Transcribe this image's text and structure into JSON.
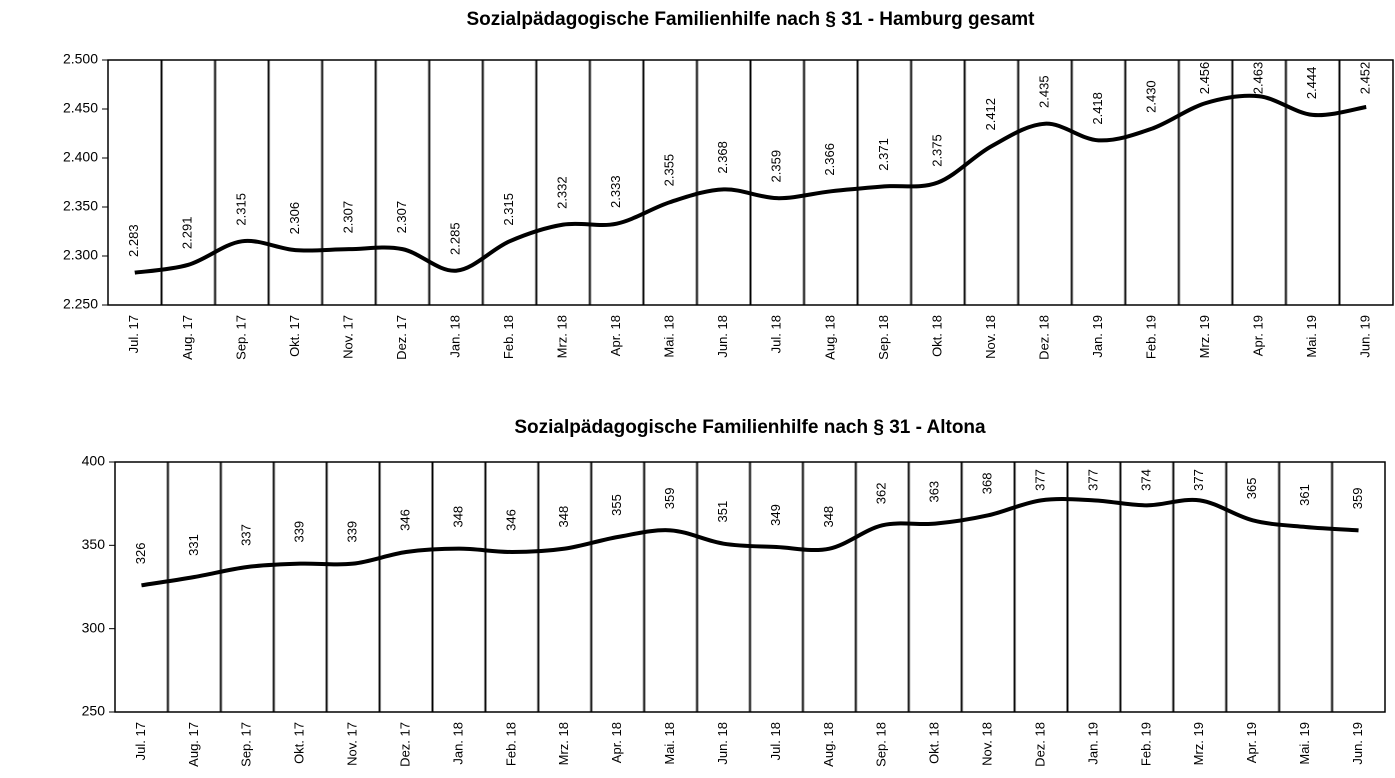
{
  "chart_data": [
    {
      "type": "line",
      "title": "Sozialpädagogische Familienhilfe nach § 31 - Hamburg gesamt",
      "categories": [
        "Jul. 17",
        "Aug. 17",
        "Sep. 17",
        "Okt. 17",
        "Nov. 17",
        "Dez. 17",
        "Jan. 18",
        "Feb. 18",
        "Mrz. 18",
        "Apr. 18",
        "Mai. 18",
        "Jun. 18",
        "Jul. 18",
        "Aug. 18",
        "Sep. 18",
        "Okt. 18",
        "Nov. 18",
        "Dez. 18",
        "Jan. 19",
        "Feb. 19",
        "Mrz. 19",
        "Apr. 19",
        "Mai. 19",
        "Jun. 19"
      ],
      "values": [
        2283,
        2291,
        2315,
        2306,
        2307,
        2307,
        2285,
        2315,
        2332,
        2333,
        2355,
        2368,
        2359,
        2366,
        2371,
        2375,
        2412,
        2435,
        2418,
        2430,
        2456,
        2463,
        2444,
        2452
      ],
      "value_labels": [
        "2.283",
        "2.291",
        "2.315",
        "2.306",
        "2.307",
        "2.307",
        "2.285",
        "2.315",
        "2.332",
        "2.333",
        "2.355",
        "2.368",
        "2.359",
        "2.366",
        "2.371",
        "2.375",
        "2.412",
        "2.435",
        "2.418",
        "2.430",
        "2.456",
        "2.463",
        "2.444",
        "2.452"
      ],
      "color": "#000000",
      "ylim": [
        2250,
        2500
      ],
      "yticks": [
        {
          "value": 2250,
          "label": "2.250"
        },
        {
          "value": 2300,
          "label": "2.300"
        },
        {
          "value": 2350,
          "label": "2.350"
        },
        {
          "value": 2400,
          "label": "2.400"
        },
        {
          "value": 2450,
          "label": "2.450"
        },
        {
          "value": 2500,
          "label": "2.500"
        }
      ]
    },
    {
      "type": "line",
      "title": "Sozialpädagogische Familienhilfe nach § 31 - Altona",
      "categories": [
        "Jul. 17",
        "Aug. 17",
        "Sep. 17",
        "Okt. 17",
        "Nov. 17",
        "Dez. 17",
        "Jan. 18",
        "Feb. 18",
        "Mrz. 18",
        "Apr. 18",
        "Mai. 18",
        "Jun. 18",
        "Jul. 18",
        "Aug. 18",
        "Sep. 18",
        "Okt. 18",
        "Nov. 18",
        "Dez. 18",
        "Jan. 19",
        "Feb. 19",
        "Mrz. 19",
        "Apr. 19",
        "Mai. 19",
        "Jun. 19"
      ],
      "values": [
        326,
        331,
        337,
        339,
        339,
        346,
        348,
        346,
        348,
        355,
        359,
        351,
        349,
        348,
        362,
        363,
        368,
        377,
        377,
        374,
        377,
        365,
        361,
        359
      ],
      "color": "#000000",
      "ylim": [
        250,
        400
      ],
      "yticks": [
        250,
        300,
        350,
        400
      ]
    }
  ]
}
